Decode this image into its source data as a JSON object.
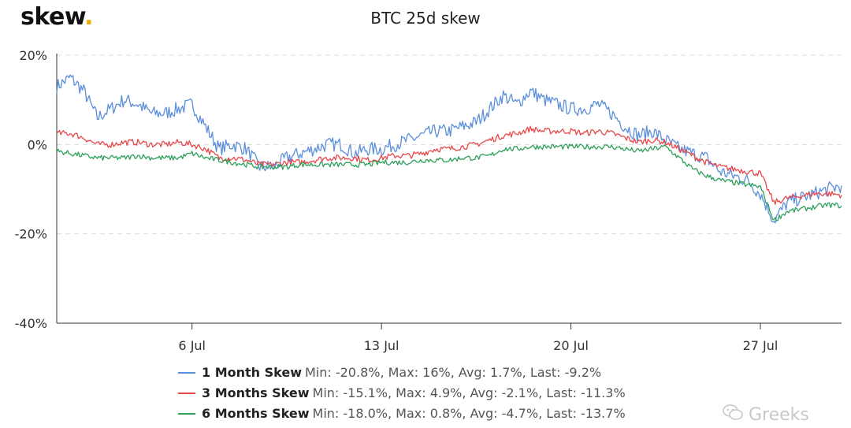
{
  "logo": {
    "text": "skew",
    "dot": "."
  },
  "watermark": {
    "text": "Greeks"
  },
  "chart_data": {
    "type": "line",
    "title": "BTC 25d skew",
    "xlabel": "",
    "ylabel": "",
    "x_range": [
      "2020-07-01",
      "2020-07-30"
    ],
    "ylim": [
      -40,
      20
    ],
    "yticks": [
      20,
      0,
      -20,
      -40
    ],
    "ytick_labels": [
      "20%",
      "0%",
      "-20%",
      "-40%"
    ],
    "xticks": [
      "2020-07-06",
      "2020-07-13",
      "2020-07-20",
      "2020-07-27"
    ],
    "xtick_labels": [
      "6 Jul",
      "13 Jul",
      "20 Jul",
      "27 Jul"
    ],
    "grid": "horizontal dashed",
    "legend_position": "bottom",
    "series": [
      {
        "name": "1 Month Skew",
        "stats": "Min: -20.8%, Max: 16%, Avg: 1.7%, Last: -9.2%",
        "color": "#5b8fdc",
        "x": [
          "2020-07-01",
          "2020-07-01T12:00",
          "2020-07-02",
          "2020-07-02T12:00",
          "2020-07-03",
          "2020-07-03T12:00",
          "2020-07-04",
          "2020-07-04T12:00",
          "2020-07-05",
          "2020-07-05T12:00",
          "2020-07-06",
          "2020-07-06T12:00",
          "2020-07-07",
          "2020-07-07T12:00",
          "2020-07-08",
          "2020-07-08T12:00",
          "2020-07-09",
          "2020-07-09T12:00",
          "2020-07-10",
          "2020-07-10T12:00",
          "2020-07-11",
          "2020-07-11T12:00",
          "2020-07-12",
          "2020-07-12T12:00",
          "2020-07-13",
          "2020-07-13T12:00",
          "2020-07-14",
          "2020-07-14T12:00",
          "2020-07-15",
          "2020-07-15T12:00",
          "2020-07-16",
          "2020-07-16T12:00",
          "2020-07-17",
          "2020-07-17T12:00",
          "2020-07-18",
          "2020-07-18T12:00",
          "2020-07-19",
          "2020-07-19T12:00",
          "2020-07-20",
          "2020-07-20T12:00",
          "2020-07-21",
          "2020-07-21T12:00",
          "2020-07-22",
          "2020-07-22T12:00",
          "2020-07-23",
          "2020-07-23T12:00",
          "2020-07-24",
          "2020-07-24T12:00",
          "2020-07-25",
          "2020-07-25T12:00",
          "2020-07-26",
          "2020-07-26T12:00",
          "2020-07-27",
          "2020-07-27T12:00",
          "2020-07-28",
          "2020-07-28T12:00",
          "2020-07-29",
          "2020-07-29T12:00",
          "2020-07-30"
        ],
        "values": [
          13,
          15,
          12,
          6,
          8,
          10,
          9,
          7,
          7,
          8,
          9,
          4,
          -1,
          0,
          -1,
          -5,
          -5,
          -3,
          -2,
          -1,
          0,
          0,
          -2,
          -1,
          -1,
          0,
          1,
          2,
          3,
          3,
          4,
          5,
          8,
          11,
          9,
          12,
          10,
          9,
          8,
          8,
          9,
          7,
          4,
          2,
          3,
          1,
          -1,
          -2,
          -3,
          -6,
          -7,
          -8,
          -11,
          -17,
          -13,
          -12,
          -11,
          -10,
          -9.2
        ]
      },
      {
        "name": "3 Months Skew",
        "stats": "Min: -15.1%, Max: 4.9%, Avg: -2.1%, Last: -11.3%",
        "color": "#e8474a",
        "x": [
          "2020-07-01",
          "2020-07-01T12:00",
          "2020-07-02",
          "2020-07-02T12:00",
          "2020-07-03",
          "2020-07-03T12:00",
          "2020-07-04",
          "2020-07-04T12:00",
          "2020-07-05",
          "2020-07-05T12:00",
          "2020-07-06",
          "2020-07-06T12:00",
          "2020-07-07",
          "2020-07-07T12:00",
          "2020-07-08",
          "2020-07-08T12:00",
          "2020-07-09",
          "2020-07-09T12:00",
          "2020-07-10",
          "2020-07-10T12:00",
          "2020-07-11",
          "2020-07-11T12:00",
          "2020-07-12",
          "2020-07-12T12:00",
          "2020-07-13",
          "2020-07-13T12:00",
          "2020-07-14",
          "2020-07-14T12:00",
          "2020-07-15",
          "2020-07-15T12:00",
          "2020-07-16",
          "2020-07-16T12:00",
          "2020-07-17",
          "2020-07-17T12:00",
          "2020-07-18",
          "2020-07-18T12:00",
          "2020-07-19",
          "2020-07-19T12:00",
          "2020-07-20",
          "2020-07-20T12:00",
          "2020-07-21",
          "2020-07-21T12:00",
          "2020-07-22",
          "2020-07-22T12:00",
          "2020-07-23",
          "2020-07-23T12:00",
          "2020-07-24",
          "2020-07-24T12:00",
          "2020-07-25",
          "2020-07-25T12:00",
          "2020-07-26",
          "2020-07-26T12:00",
          "2020-07-27",
          "2020-07-27T12:00",
          "2020-07-28",
          "2020-07-28T12:00",
          "2020-07-29",
          "2020-07-29T12:00",
          "2020-07-30"
        ],
        "values": [
          2.5,
          2.5,
          1.5,
          0,
          0,
          0.5,
          0.5,
          0,
          0,
          0.5,
          0,
          -1,
          -3,
          -3,
          -3.5,
          -4.5,
          -4.5,
          -4,
          -4,
          -3.5,
          -3,
          -3,
          -3,
          -3.5,
          -3,
          -2.5,
          -2.5,
          -2,
          -1,
          -1,
          -0.5,
          0,
          1,
          2,
          2.5,
          3.5,
          3,
          3,
          3,
          2.5,
          3,
          2.5,
          1.5,
          0.5,
          1,
          0.5,
          -1,
          -2.5,
          -4,
          -5,
          -5.5,
          -6,
          -6.5,
          -13,
          -12,
          -11.5,
          -11,
          -11,
          -11.3
        ]
      },
      {
        "name": "6 Months Skew",
        "stats": "Min: -18.0%, Max: 0.8%, Avg: -4.7%, Last: -13.7%",
        "color": "#2ea05a",
        "x": [
          "2020-07-01",
          "2020-07-01T12:00",
          "2020-07-02",
          "2020-07-02T12:00",
          "2020-07-03",
          "2020-07-03T12:00",
          "2020-07-04",
          "2020-07-04T12:00",
          "2020-07-05",
          "2020-07-05T12:00",
          "2020-07-06",
          "2020-07-06T12:00",
          "2020-07-07",
          "2020-07-07T12:00",
          "2020-07-08",
          "2020-07-08T12:00",
          "2020-07-09",
          "2020-07-09T12:00",
          "2020-07-10",
          "2020-07-10T12:00",
          "2020-07-11",
          "2020-07-11T12:00",
          "2020-07-12",
          "2020-07-12T12:00",
          "2020-07-13",
          "2020-07-13T12:00",
          "2020-07-14",
          "2020-07-14T12:00",
          "2020-07-15",
          "2020-07-15T12:00",
          "2020-07-16",
          "2020-07-16T12:00",
          "2020-07-17",
          "2020-07-17T12:00",
          "2020-07-18",
          "2020-07-18T12:00",
          "2020-07-19",
          "2020-07-19T12:00",
          "2020-07-20",
          "2020-07-20T12:00",
          "2020-07-21",
          "2020-07-21T12:00",
          "2020-07-22",
          "2020-07-22T12:00",
          "2020-07-23",
          "2020-07-23T12:00",
          "2020-07-24",
          "2020-07-24T12:00",
          "2020-07-25",
          "2020-07-25T12:00",
          "2020-07-26",
          "2020-07-26T12:00",
          "2020-07-27",
          "2020-07-27T12:00",
          "2020-07-28",
          "2020-07-28T12:00",
          "2020-07-29",
          "2020-07-29T12:00",
          "2020-07-30"
        ],
        "values": [
          -1.5,
          -2,
          -2.5,
          -3,
          -3,
          -3,
          -2.5,
          -3,
          -3,
          -3,
          -2,
          -3,
          -3.5,
          -4,
          -4.5,
          -5,
          -5,
          -5,
          -4.5,
          -4.5,
          -4.5,
          -4.5,
          -4.5,
          -4.5,
          -4,
          -4,
          -4,
          -3.5,
          -3.5,
          -3.5,
          -3,
          -3,
          -2.5,
          -1,
          -1,
          -0.5,
          -0.5,
          -0.5,
          -0.5,
          -0.5,
          -0.5,
          -0.5,
          -1,
          -1.5,
          -1,
          -0.5,
          -3,
          -5.5,
          -7,
          -8,
          -8.5,
          -9,
          -9.5,
          -17,
          -15,
          -14.5,
          -14,
          -13.5,
          -13.7
        ]
      }
    ]
  }
}
